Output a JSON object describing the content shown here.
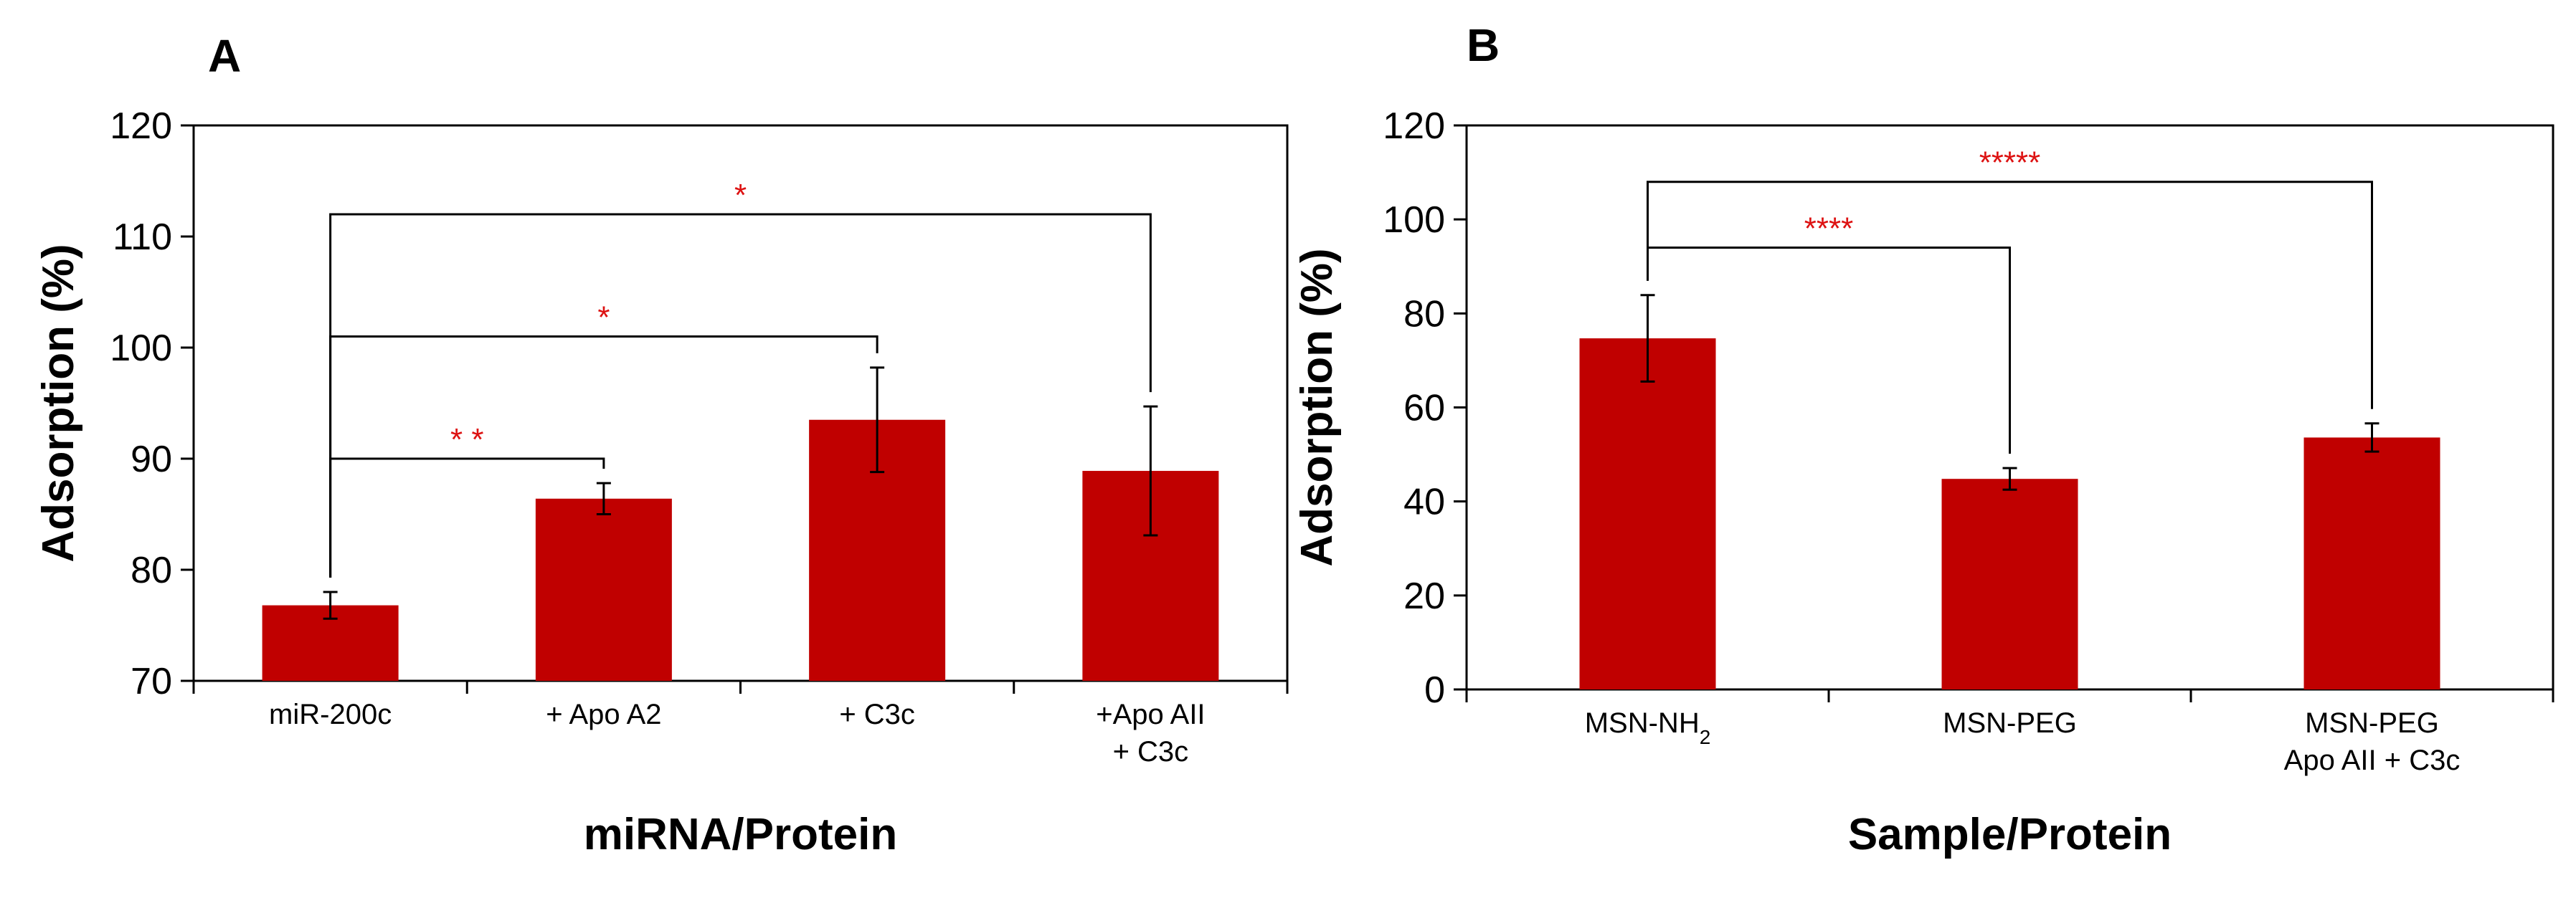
{
  "colors": {
    "bar": "#c00000",
    "significance": "#dd1111",
    "axis": "#000000"
  },
  "chart_data": [
    {
      "type": "bar",
      "panel": "A",
      "xlabel": "miRNA/Protein",
      "ylabel": "Adsorption (%)",
      "ylim": [
        70,
        120
      ],
      "yticks": [
        70,
        80,
        90,
        100,
        110,
        120
      ],
      "categories": [
        [
          "miR-200c"
        ],
        [
          "+ Apo A2"
        ],
        [
          "+ C3c"
        ],
        [
          "+Apo AII",
          "+ C3c"
        ]
      ],
      "values": [
        76.8,
        86.4,
        93.5,
        88.9
      ],
      "errors": [
        1.2,
        1.4,
        4.7,
        5.8
      ],
      "significance": [
        {
          "from": 0,
          "to": 1,
          "label": "* *",
          "level": 90
        },
        {
          "from": 0,
          "to": 2,
          "label": "*",
          "level": 101
        },
        {
          "from": 0,
          "to": 3,
          "label": "*",
          "level": 112
        }
      ]
    },
    {
      "type": "bar",
      "panel": "B",
      "xlabel": "Sample/Protein",
      "ylabel": "Adsorption (%)",
      "ylim": [
        0,
        120
      ],
      "yticks": [
        0,
        20,
        40,
        60,
        80,
        100,
        120
      ],
      "categories": [
        [
          {
            "t": "MSN-NH"
          },
          {
            "t": "2",
            "sub": true
          }
        ],
        [
          {
            "t": "MSN-PEG"
          }
        ],
        [
          {
            "t": "MSN-PEG"
          },
          {
            "t": "Apo AII + C3c",
            "line2": true
          }
        ]
      ],
      "values": [
        74.7,
        44.8,
        53.6
      ],
      "errors": [
        9.2,
        2.3,
        3.0
      ],
      "significance": [
        {
          "from": 0,
          "to": 1,
          "label": "****",
          "level": 94
        },
        {
          "from": 0,
          "to": 2,
          "label": "*****",
          "level": 108
        }
      ]
    }
  ]
}
